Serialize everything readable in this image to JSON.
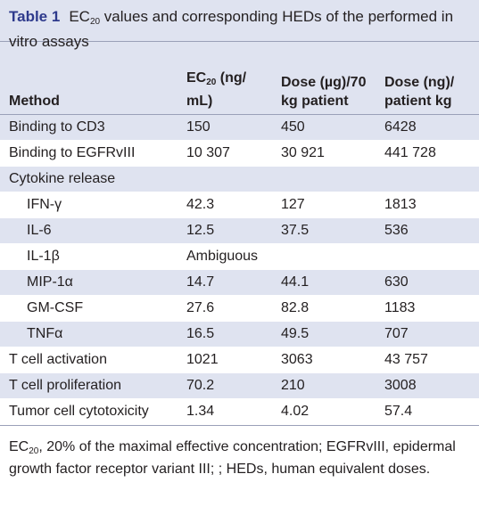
{
  "caption": {
    "table_number": "Table 1",
    "text_part1": "EC",
    "text_sub": "20",
    "text_part2": " values and corresponding HEDs of the performed in vitro assays"
  },
  "header": {
    "method": "Method",
    "ec20_part1": "EC",
    "ec20_sub": "20",
    "ec20_part2": " (ng/ mL)",
    "dose_patient": "Dose (µg)/70 kg patient",
    "dose_per_kg": "Dose (ng)/ patient kg"
  },
  "rows": [
    {
      "method": "Binding to CD3",
      "ec20": "150",
      "dose_patient": "450",
      "dose_per_kg": "6428"
    },
    {
      "method": "Binding to EGFRvIII",
      "ec20": "10 307",
      "dose_patient": "30 921",
      "dose_per_kg": "441 728"
    },
    {
      "method": "Cytokine release",
      "ec20": "",
      "dose_patient": "",
      "dose_per_kg": ""
    },
    {
      "method": "IFN-γ",
      "ec20": "42.3",
      "dose_patient": "127",
      "dose_per_kg": "1813"
    },
    {
      "method": "IL-6",
      "ec20": "12.5",
      "dose_patient": "37.5",
      "dose_per_kg": "536"
    },
    {
      "method": "IL-1β",
      "ec20": "Ambiguous",
      "dose_patient": "",
      "dose_per_kg": ""
    },
    {
      "method": "MIP-1α",
      "ec20": "14.7",
      "dose_patient": "44.1",
      "dose_per_kg": "630"
    },
    {
      "method": "GM-CSF",
      "ec20": "27.6",
      "dose_patient": "82.8",
      "dose_per_kg": "1183"
    },
    {
      "method": "TNFα",
      "ec20": "16.5",
      "dose_patient": "49.5",
      "dose_per_kg": "707"
    },
    {
      "method": "T cell activation",
      "ec20": "1021",
      "dose_patient": "3063",
      "dose_per_kg": "43 757"
    },
    {
      "method": "T cell proliferation",
      "ec20": "70.2",
      "dose_patient": "210",
      "dose_per_kg": "3008"
    },
    {
      "method": "Tumor cell cytotoxicity",
      "ec20": "1.34",
      "dose_patient": "4.02",
      "dose_per_kg": "57.4"
    }
  ],
  "footnote": {
    "part1": "EC",
    "sub": "20",
    "part2": ", 20% of the maximal effective concentration; EGFRvIII, epidermal growth factor receptor variant III; ; HEDs, human equivalent doses."
  },
  "colors": {
    "band": "#dfe3f0",
    "title_accent": "#2e3a8c"
  }
}
